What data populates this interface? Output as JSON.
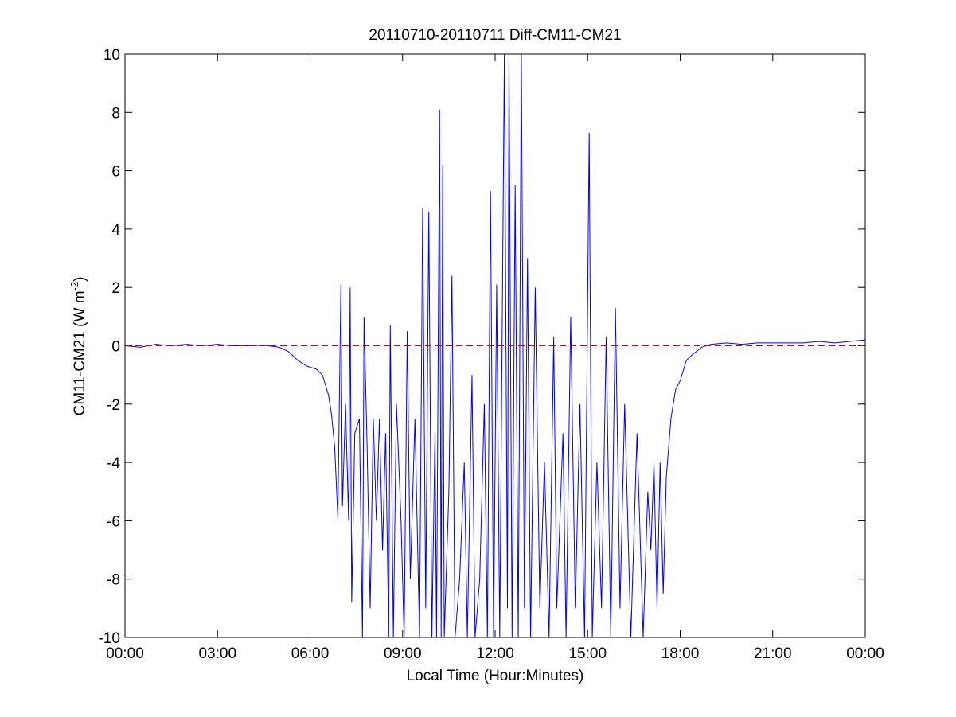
{
  "chart_data": {
    "type": "line",
    "title": "20110710-20110711 Diff-CM11-CM21",
    "x_label": "Local Time (Hour:Minutes)",
    "y_label": {
      "main": "CM11-CM21 (W m",
      "superscript": "-2",
      "end": ")"
    },
    "xlim": [
      0,
      24
    ],
    "xticks": [
      {
        "value": 0,
        "label": "00:00"
      },
      {
        "value": 3,
        "label": "03:00"
      },
      {
        "value": 6,
        "label": "06:00"
      },
      {
        "value": 9,
        "label": "09:00"
      },
      {
        "value": 12,
        "label": "12:00"
      },
      {
        "value": 15,
        "label": "15:00"
      },
      {
        "value": 18,
        "label": "18:00"
      },
      {
        "value": 21,
        "label": "21:00"
      },
      {
        "value": 24,
        "label": "00:00"
      }
    ],
    "ylim": [
      -10,
      10
    ],
    "yticks": [
      -10,
      -8,
      -6,
      -4,
      -2,
      0,
      2,
      4,
      6,
      8,
      10
    ],
    "reference_line": {
      "value": 0,
      "color": "#cc0000"
    },
    "series": [
      {
        "color": "#0000ff",
        "x": [
          0,
          0.5,
          1,
          1.5,
          2,
          2.5,
          3,
          3.5,
          4,
          4.5,
          5,
          5.3,
          5.6,
          5.9,
          6.2,
          6.4,
          6.6,
          6.7,
          6.8,
          6.9,
          7.0,
          7.05,
          7.15,
          7.25,
          7.3,
          7.35,
          7.45,
          7.6,
          7.7,
          7.75,
          7.85,
          7.95,
          8.05,
          8.15,
          8.25,
          8.35,
          8.45,
          8.55,
          8.6,
          8.7,
          8.8,
          8.95,
          9.05,
          9.15,
          9.25,
          9.4,
          9.55,
          9.65,
          9.75,
          9.85,
          9.95,
          10.05,
          10.1,
          10.2,
          10.25,
          10.3,
          10.35,
          10.5,
          10.6,
          10.7,
          10.85,
          11.0,
          11.1,
          11.25,
          11.35,
          11.5,
          11.65,
          11.75,
          11.85,
          11.95,
          12.05,
          12.15,
          12.3,
          12.4,
          12.45,
          12.55,
          12.65,
          12.75,
          12.85,
          12.95,
          13.05,
          13.15,
          13.3,
          13.45,
          13.6,
          13.75,
          13.9,
          14.0,
          14.2,
          14.3,
          14.45,
          14.6,
          14.75,
          14.9,
          15.05,
          15.15,
          15.3,
          15.45,
          15.6,
          15.75,
          15.9,
          16.05,
          16.2,
          16.4,
          16.6,
          16.8,
          16.95,
          17.05,
          17.15,
          17.25,
          17.35,
          17.45,
          17.55,
          17.7,
          17.85,
          18.0,
          18.2,
          18.4,
          18.7,
          19,
          19.5,
          20,
          20.5,
          21,
          21.5,
          22,
          22.5,
          23,
          23.5,
          24
        ],
        "values": [
          0,
          -0.05,
          0.05,
          0,
          0.05,
          0,
          0.05,
          0,
          0,
          0.02,
          -0.05,
          -0.2,
          -0.5,
          -0.7,
          -0.8,
          -1.0,
          -1.7,
          -2.4,
          -3.5,
          -5.9,
          2.1,
          -5.5,
          -2,
          -6,
          2,
          -8.8,
          -3,
          -2.5,
          -10,
          1,
          -3.5,
          -9,
          -2.5,
          -6,
          -2.5,
          -7,
          -3,
          -10,
          0.7,
          -10,
          -2,
          -6,
          -10,
          0.5,
          -8,
          -2.5,
          -10,
          4.7,
          -9,
          4.6,
          -10,
          -3,
          -10,
          8.1,
          -10,
          6.2,
          -10,
          -5,
          2.4,
          -10,
          -8,
          -4,
          -10,
          -1,
          -10,
          -8,
          -2,
          -10,
          5.3,
          -10,
          2.1,
          -10,
          10,
          -9,
          10,
          -10,
          5.5,
          -10,
          10,
          -9,
          3,
          -10,
          2.0,
          -9,
          -4,
          -10,
          0.3,
          -9,
          -3,
          -10,
          1.0,
          -9,
          -2,
          -10,
          7.3,
          -10,
          -4,
          -9,
          0.3,
          -10,
          1.3,
          -9,
          -2,
          -10,
          -3,
          -10,
          -5,
          -7,
          -4,
          -9,
          -4,
          -8.5,
          -4.5,
          -2.5,
          -1.5,
          -1.2,
          -0.5,
          -0.3,
          -0.05,
          0.05,
          0.1,
          0.05,
          0.1,
          0.1,
          0.1,
          0.1,
          0.15,
          0.1,
          0.15,
          0.2
        ]
      }
    ]
  }
}
